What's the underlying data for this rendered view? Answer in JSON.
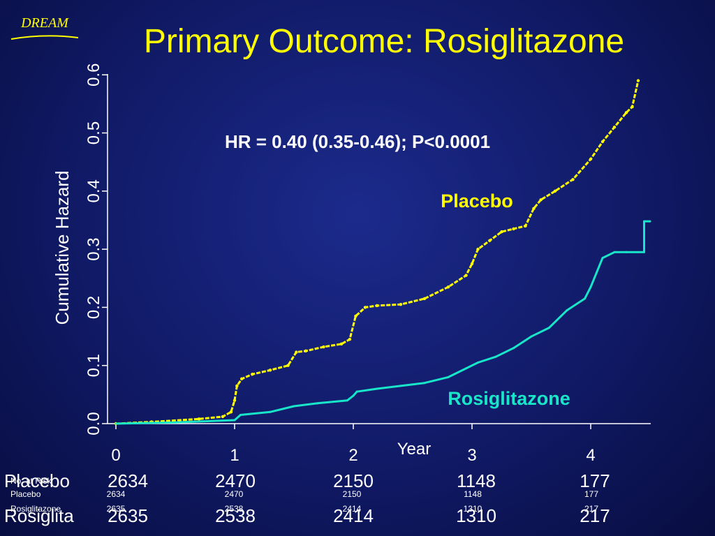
{
  "logo": {
    "text": "DREAM",
    "color": "#ffff00"
  },
  "title": "Primary Outcome: Rosiglitazone",
  "chart_data": {
    "type": "line",
    "title": "",
    "xlabel": "Year",
    "ylabel": "Cumulative Hazard",
    "xlim": [
      0,
      4.5
    ],
    "ylim": [
      0,
      0.6
    ],
    "x_ticks": [
      "0",
      "1",
      "2",
      "3",
      "4"
    ],
    "y_ticks": [
      "0.0",
      "0.1",
      "0.2",
      "0.3",
      "0.4",
      "0.5",
      "0.6"
    ],
    "annotation": "HR = 0.40 (0.35-0.46); P<0.0001",
    "grid": false,
    "series": [
      {
        "name": "Placebo",
        "color": "#ffff00",
        "x": [
          0,
          0.3,
          0.7,
          0.9,
          0.97,
          1.0,
          1.02,
          1.06,
          1.15,
          1.3,
          1.45,
          1.52,
          1.6,
          1.75,
          1.9,
          1.97,
          2.02,
          2.1,
          2.2,
          2.4,
          2.6,
          2.8,
          2.95,
          3.0,
          3.05,
          3.15,
          3.25,
          3.35,
          3.45,
          3.52,
          3.58,
          3.7,
          3.85,
          4.0,
          4.1,
          4.2,
          4.3,
          4.35,
          4.4
        ],
        "values": [
          0,
          0.003,
          0.008,
          0.012,
          0.02,
          0.04,
          0.065,
          0.077,
          0.085,
          0.092,
          0.1,
          0.123,
          0.125,
          0.132,
          0.137,
          0.145,
          0.185,
          0.2,
          0.203,
          0.205,
          0.215,
          0.235,
          0.255,
          0.275,
          0.3,
          0.315,
          0.33,
          0.335,
          0.34,
          0.37,
          0.385,
          0.4,
          0.42,
          0.455,
          0.485,
          0.51,
          0.535,
          0.545,
          0.59
        ]
      },
      {
        "name": "Rosiglitazone",
        "color": "#19e6c8",
        "x": [
          0,
          0.5,
          1.0,
          1.05,
          1.3,
          1.5,
          1.7,
          1.95,
          2.0,
          2.03,
          2.2,
          2.4,
          2.6,
          2.8,
          2.95,
          3.05,
          3.2,
          3.35,
          3.5,
          3.65,
          3.8,
          3.95,
          4.0,
          4.05,
          4.1,
          4.2,
          4.3,
          4.45,
          4.45,
          4.5
        ],
        "values": [
          0,
          0.002,
          0.006,
          0.015,
          0.02,
          0.03,
          0.035,
          0.04,
          0.048,
          0.055,
          0.06,
          0.065,
          0.07,
          0.08,
          0.095,
          0.105,
          0.115,
          0.13,
          0.15,
          0.165,
          0.195,
          0.215,
          0.235,
          0.26,
          0.285,
          0.295,
          0.295,
          0.295,
          0.348,
          0.348
        ]
      }
    ]
  },
  "legend": {
    "placebo": {
      "label": "Placebo",
      "color": "#ffff00"
    },
    "rosiglitazone": {
      "label": "Rosiglitazone",
      "color": "#19e6c8"
    }
  },
  "at_risk": {
    "header": "No. at Risk",
    "placebo_label_big": "Placebo",
    "placebo_label_small": "Placebo",
    "rosi_label_big": "Rosiglita",
    "rosi_label_small": "Rosiglitazone",
    "placebo_values": [
      "2634",
      "2470",
      "2150",
      "1148",
      "177"
    ],
    "rosi_values": [
      "2635",
      "2538",
      "2414",
      "1310",
      "217"
    ]
  }
}
